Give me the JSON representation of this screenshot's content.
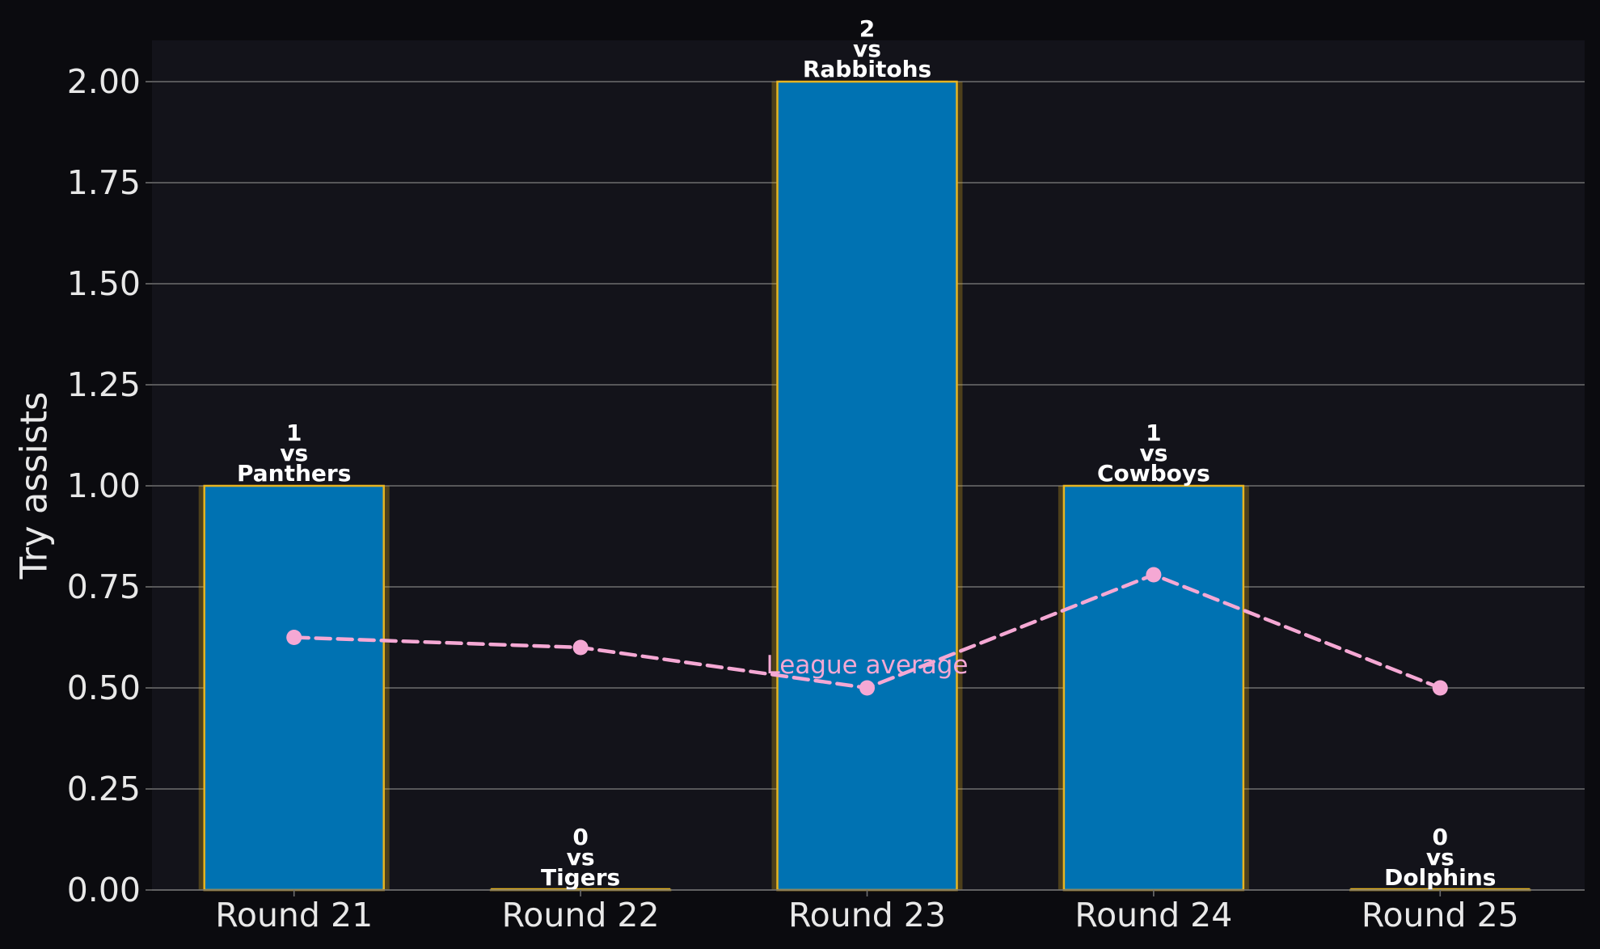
{
  "chart_data": {
    "type": "bar",
    "categories": [
      "Round 21",
      "Round 22",
      "Round 23",
      "Round 24",
      "Round 25"
    ],
    "ylabel": "Try assists",
    "ylim": [
      0,
      2.1
    ],
    "yticks": [
      "0.00",
      "0.25",
      "0.50",
      "0.75",
      "1.00",
      "1.25",
      "1.50",
      "1.75",
      "2.00"
    ],
    "grid": true,
    "series": [
      {
        "values": [
          1,
          0,
          2,
          1,
          0
        ],
        "value_labels": [
          "1",
          "0",
          "2",
          "1",
          "0"
        ],
        "vs_word": "vs",
        "opponents": [
          "Panthers",
          "Tigers",
          "Rabbitohs",
          "Cowboys",
          "Dolphins"
        ]
      },
      {
        "name": "League average",
        "type": "line",
        "values": [
          0.625,
          0.6,
          0.5,
          0.78,
          0.5
        ]
      }
    ],
    "colors": {
      "background": "#0b0b0f",
      "plot_background": "#13131a",
      "bar_fill": "#0072b2",
      "bar_edge": "#e6b422",
      "line": "#f5a8d4",
      "grid": "#6e6e6e",
      "text": "#e8e8e8",
      "label_text": "#ffffff"
    }
  }
}
